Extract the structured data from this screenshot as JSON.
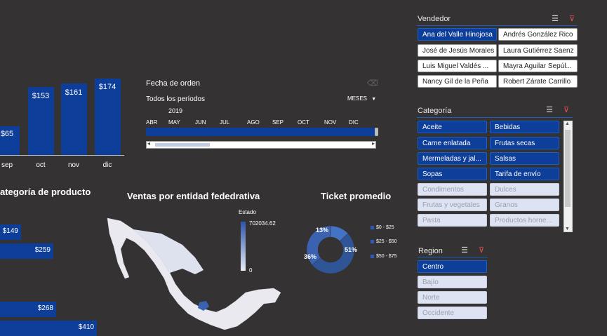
{
  "month_bars": {
    "items": [
      {
        "month": "sep",
        "value_label": "$65",
        "value": 65
      },
      {
        "month": "oct",
        "value_label": "$153",
        "value": 153
      },
      {
        "month": "nov",
        "value_label": "$161",
        "value": 161
      },
      {
        "month": "dic",
        "value_label": "$174",
        "value": 174
      }
    ]
  },
  "timeline": {
    "title": "Fecha de orden",
    "period_label": "Todos los períodos",
    "unit_label": "MESES",
    "year": "2019",
    "months": [
      "ABR",
      "MAY",
      "JUN",
      "JUL",
      "AGO",
      "SEP",
      "OCT",
      "NOV",
      "DIC"
    ]
  },
  "category_chart": {
    "title": "ategoría de producto",
    "bars": [
      {
        "label": "$149",
        "value": 149
      },
      {
        "label": "$259",
        "value": 259
      },
      {
        "label": "$268",
        "value": 268
      },
      {
        "label": "$410",
        "value": 410
      }
    ]
  },
  "map": {
    "title": "Ventas por entidad fededrativa",
    "legend_title": "Estado",
    "legend_max": "702034.62",
    "legend_min": "0"
  },
  "donut": {
    "title": "Ticket promedio",
    "slices": [
      {
        "label": "51%",
        "value": 51,
        "color": "#2f5597"
      },
      {
        "label": "36%",
        "value": 36,
        "color": "#3a62b0"
      },
      {
        "label": "13%",
        "value": 13,
        "color": "#4472c4"
      }
    ],
    "legend": [
      "$0 - $25",
      "$25 - $50",
      "$50 - $75"
    ]
  },
  "vendedor": {
    "title": "Vendedor",
    "items": [
      {
        "label": "Ana del Valle Hinojosa",
        "state": "selected"
      },
      {
        "label": "Andrés González Rico",
        "state": "normal"
      },
      {
        "label": "José de Jesús Morales",
        "state": "normal"
      },
      {
        "label": "Laura Gutiérrez Saenz",
        "state": "normal"
      },
      {
        "label": "Luis Miguel Valdés ...",
        "state": "normal"
      },
      {
        "label": "Mayra Aguilar Sepúl...",
        "state": "normal"
      },
      {
        "label": "Nancy Gil de la Peña",
        "state": "normal"
      },
      {
        "label": "Robert Zárate Carrillo",
        "state": "normal"
      }
    ]
  },
  "categoria": {
    "title": "Categoría",
    "items": [
      {
        "label": "Aceite",
        "state": "selected"
      },
      {
        "label": "Bebidas",
        "state": "selected"
      },
      {
        "label": "Carne enlatada",
        "state": "selected"
      },
      {
        "label": "Frutas secas",
        "state": "selected"
      },
      {
        "label": "Mermeladas y jal...",
        "state": "selected"
      },
      {
        "label": "Salsas",
        "state": "selected"
      },
      {
        "label": "Sopas",
        "state": "selected"
      },
      {
        "label": "Tarifa de envío",
        "state": "selected"
      },
      {
        "label": "Condimentos",
        "state": "disabled"
      },
      {
        "label": "Dulces",
        "state": "disabled"
      },
      {
        "label": "Frutas y vegetales",
        "state": "disabled"
      },
      {
        "label": "Granos",
        "state": "disabled"
      },
      {
        "label": "Pasta",
        "state": "disabled"
      },
      {
        "label": "Productos horne...",
        "state": "disabled"
      }
    ]
  },
  "region": {
    "title": "Region",
    "items": [
      {
        "label": "Centro",
        "state": "selected"
      },
      {
        "label": "Bajío",
        "state": "disabled"
      },
      {
        "label": "Norte",
        "state": "disabled"
      },
      {
        "label": "Occidente",
        "state": "disabled"
      }
    ]
  },
  "colors": {
    "background": "#343232",
    "bar": "#0d3e9a",
    "accent": "#1c5fc0"
  }
}
